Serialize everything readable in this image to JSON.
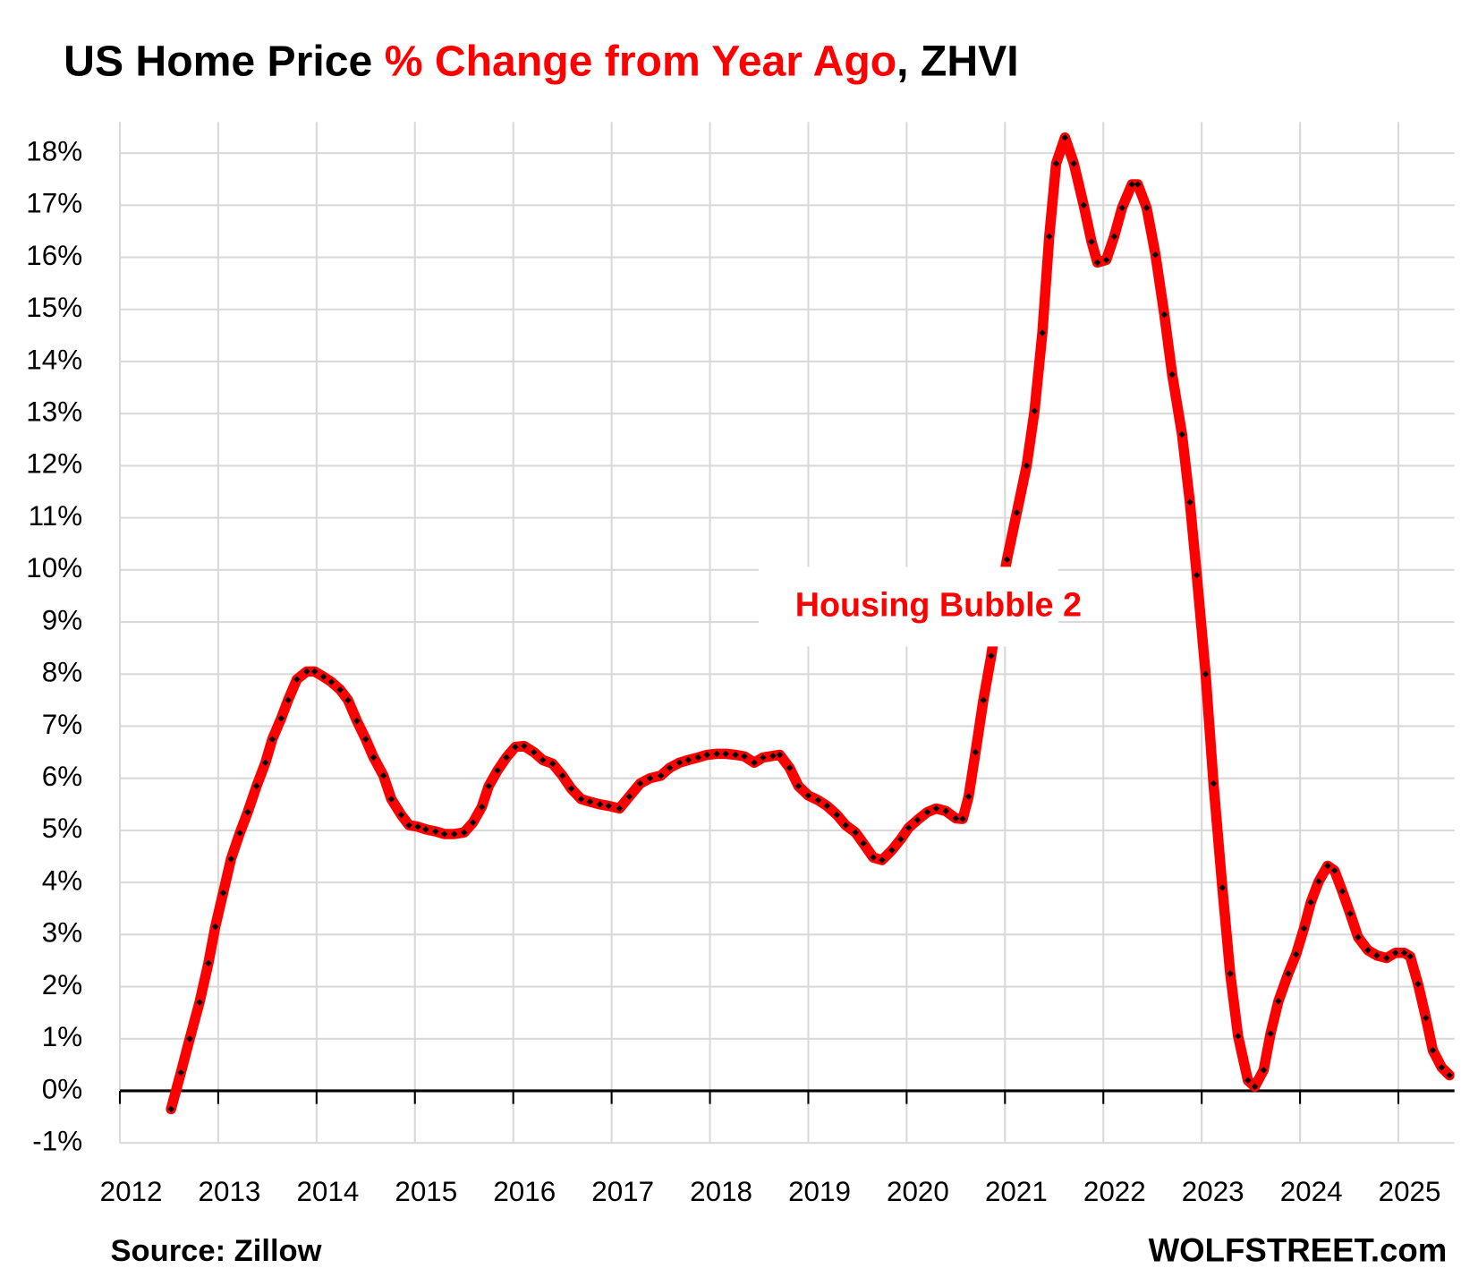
{
  "chart_data": {
    "type": "line",
    "title": [
      {
        "text": "US Home Price ",
        "color": "#000000"
      },
      {
        "text": "% Change from Year Ago",
        "color": "#ff0000"
      },
      {
        "text": ", ZHVI",
        "color": "#000000"
      }
    ],
    "annotation": "Housing Bubble 2",
    "source": "Source: Zillow",
    "credit": "WOLFSTREET.com",
    "x": [
      2012.52,
      2012.62,
      2012.71,
      2012.81,
      2012.9,
      2012.97,
      2013.05,
      2013.13,
      2013.22,
      2013.3,
      2013.39,
      2013.48,
      2013.55,
      2013.64,
      2013.71,
      2013.8,
      2013.9,
      2013.98,
      2014.07,
      2014.15,
      2014.24,
      2014.32,
      2014.41,
      2014.5,
      2014.58,
      2014.68,
      2014.76,
      2014.86,
      2014.94,
      2015.03,
      2015.11,
      2015.21,
      2015.3,
      2015.4,
      2015.5,
      2015.59,
      2015.68,
      2015.75,
      2015.84,
      2015.93,
      2016.02,
      2016.11,
      2016.21,
      2016.3,
      2016.4,
      2016.5,
      2016.59,
      2016.69,
      2016.78,
      2016.88,
      2016.97,
      2017.08,
      2017.18,
      2017.29,
      2017.39,
      2017.5,
      2017.59,
      2017.69,
      2017.78,
      2017.88,
      2017.97,
      2018.07,
      2018.16,
      2018.26,
      2018.35,
      2018.45,
      2018.54,
      2018.64,
      2018.71,
      2018.81,
      2018.9,
      2019.0,
      2019.1,
      2019.19,
      2019.29,
      2019.38,
      2019.48,
      2019.56,
      2019.66,
      2019.75,
      2019.85,
      2019.94,
      2020.02,
      2020.11,
      2020.21,
      2020.3,
      2020.4,
      2020.5,
      2020.57,
      2020.63,
      2020.7,
      2020.78,
      2020.86,
      2020.93,
      2021.02,
      2021.12,
      2021.22,
      2021.3,
      2021.38,
      2021.45,
      2021.52,
      2021.61,
      2021.7,
      2021.8,
      2021.88,
      2021.94,
      2022.03,
      2022.11,
      2022.19,
      2022.29,
      2022.35,
      2022.44,
      2022.53,
      2022.62,
      2022.7,
      2022.8,
      2022.88,
      2022.95,
      2023.04,
      2023.12,
      2023.21,
      2023.29,
      2023.37,
      2023.47,
      2023.54,
      2023.63,
      2023.7,
      2023.78,
      2023.88,
      2023.96,
      2024.04,
      2024.11,
      2024.19,
      2024.28,
      2024.35,
      2024.43,
      2024.51,
      2024.59,
      2024.69,
      2024.78,
      2024.88,
      2024.97,
      2025.06,
      2025.12,
      2025.2,
      2025.28,
      2025.35,
      2025.44,
      2025.52
    ],
    "series": [
      {
        "name": "ZHVI % change",
        "color": "#ff0000",
        "marker_color": "#000000",
        "values": [
          -0.35,
          0.35,
          1.0,
          1.7,
          2.45,
          3.15,
          3.8,
          4.45,
          4.95,
          5.35,
          5.85,
          6.3,
          6.75,
          7.15,
          7.5,
          7.9,
          8.05,
          8.05,
          7.95,
          7.85,
          7.7,
          7.5,
          7.1,
          6.75,
          6.4,
          6.05,
          5.6,
          5.3,
          5.1,
          5.07,
          5.02,
          4.98,
          4.93,
          4.93,
          4.96,
          5.15,
          5.45,
          5.85,
          6.15,
          6.4,
          6.6,
          6.62,
          6.5,
          6.35,
          6.28,
          6.05,
          5.8,
          5.6,
          5.55,
          5.5,
          5.47,
          5.42,
          5.65,
          5.9,
          6.0,
          6.05,
          6.2,
          6.3,
          6.35,
          6.4,
          6.45,
          6.47,
          6.47,
          6.45,
          6.42,
          6.3,
          6.4,
          6.43,
          6.45,
          6.2,
          5.85,
          5.67,
          5.58,
          5.47,
          5.3,
          5.1,
          4.96,
          4.75,
          4.48,
          4.43,
          4.62,
          4.83,
          5.05,
          5.2,
          5.35,
          5.42,
          5.37,
          5.23,
          5.22,
          5.65,
          6.5,
          7.5,
          8.35,
          9.25,
          10.2,
          11.1,
          12.0,
          13.05,
          14.55,
          16.4,
          17.8,
          18.3,
          17.8,
          17.0,
          16.3,
          15.9,
          15.95,
          16.4,
          16.95,
          17.4,
          17.4,
          16.95,
          16.05,
          14.9,
          13.75,
          12.6,
          11.3,
          9.9,
          8.0,
          5.9,
          3.9,
          2.25,
          1.05,
          0.2,
          0.08,
          0.4,
          1.1,
          1.72,
          2.25,
          2.62,
          3.12,
          3.62,
          4.02,
          4.32,
          4.23,
          3.83,
          3.4,
          2.95,
          2.7,
          2.6,
          2.55,
          2.65,
          2.65,
          2.58,
          2.05,
          1.4,
          0.78,
          0.45,
          0.3
        ]
      }
    ],
    "xlim": [
      2012,
      2025.57
    ],
    "xticks": [
      2012,
      2013,
      2014,
      2015,
      2016,
      2017,
      2018,
      2019,
      2020,
      2021,
      2022,
      2023,
      2024,
      2025
    ],
    "ylim": [
      -1,
      18.6
    ],
    "yticks": [
      {
        "value": -1,
        "label": "-1%"
      },
      {
        "value": 0,
        "label": "0%"
      },
      {
        "value": 1,
        "label": "1%"
      },
      {
        "value": 2,
        "label": "2%"
      },
      {
        "value": 3,
        "label": "3%"
      },
      {
        "value": 4,
        "label": "4%"
      },
      {
        "value": 5,
        "label": "5%"
      },
      {
        "value": 6,
        "label": "6%"
      },
      {
        "value": 7,
        "label": "7%"
      },
      {
        "value": 8,
        "label": "8%"
      },
      {
        "value": 9,
        "label": "9%"
      },
      {
        "value": 10,
        "label": "10%"
      },
      {
        "value": 11,
        "label": "11%"
      },
      {
        "value": 12,
        "label": "12%"
      },
      {
        "value": 13,
        "label": "13%"
      },
      {
        "value": 14,
        "label": "14%"
      },
      {
        "value": 15,
        "label": "15%"
      },
      {
        "value": 16,
        "label": "16%"
      },
      {
        "value": 17,
        "label": "17%"
      },
      {
        "value": 18,
        "label": "18%"
      }
    ],
    "grid": true
  }
}
